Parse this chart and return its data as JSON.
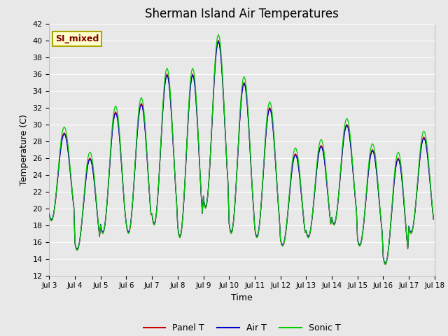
{
  "title": "Sherman Island Air Temperatures",
  "xlabel": "Time",
  "ylabel": "Temperature (C)",
  "ylim": [
    12,
    42
  ],
  "yticks": [
    12,
    14,
    16,
    18,
    20,
    22,
    24,
    26,
    28,
    30,
    32,
    34,
    36,
    38,
    40,
    42
  ],
  "xtick_labels": [
    "Jul 3",
    "Jul 4",
    "Jul 5",
    "Jul 6",
    "Jul 7",
    "Jul 8",
    "Jul 9",
    "Jul 10",
    "Jul 11",
    "Jul 12",
    "Jul 13",
    "Jul 14",
    "Jul 15",
    "Jul 16",
    "Jul 17",
    "Jul 18"
  ],
  "legend_entries": [
    "Panel T",
    "Air T",
    "Sonic T"
  ],
  "legend_colors": [
    "#cc0000",
    "#0000cc",
    "#00cc00"
  ],
  "annotation_text": "SI_mixed",
  "annotation_color": "#800000",
  "annotation_bg": "#ffffcc",
  "bg_color": "#e8e8e8",
  "n_days": 15,
  "day_maxima": [
    29,
    26,
    31.5,
    32.5,
    36,
    36,
    40,
    35,
    32,
    26.5,
    27.5,
    30,
    27,
    26,
    28.5
  ],
  "day_minima": [
    18.5,
    15,
    17,
    17,
    18,
    16.5,
    20,
    17,
    16.5,
    15.5,
    16.5,
    18,
    15.5,
    13.3,
    17
  ]
}
